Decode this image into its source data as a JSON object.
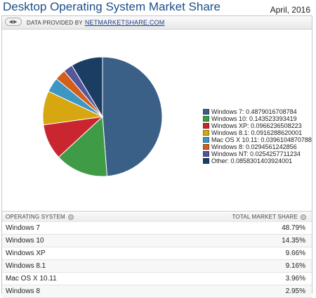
{
  "header": {
    "title": "Desktop Operating System Market Share",
    "date": "April, 2016"
  },
  "source_bar": {
    "nav_icon": "back-forward-icon",
    "provided_by": "DATA PROVIDED BY",
    "source_link": "NETMARKETSHARE.COM"
  },
  "chart_data": {
    "type": "pie",
    "title": "",
    "slices": [
      {
        "label": "Windows 7: 0.4879016708784",
        "value": 0.4879016708784,
        "color": "#3a6087"
      },
      {
        "label": "Windows 10: 0.143523393419",
        "value": 0.143523393419,
        "color": "#3f9b45"
      },
      {
        "label": "Windows XP: 0.0966236508223",
        "value": 0.0966236508223,
        "color": "#c9262f"
      },
      {
        "label": "Windows 8.1: 0.0916288620001",
        "value": 0.0916288620001,
        "color": "#d7a712"
      },
      {
        "label": "Mac OS X 10.11: 0.0396104870788",
        "value": 0.0396104870788,
        "color": "#3d97c4"
      },
      {
        "label": "Windows 8: 0.0294561242856",
        "value": 0.0294561242856,
        "color": "#d45e1b"
      },
      {
        "label": "Windows NT: 0.0254257711234",
        "value": 0.0254257711234,
        "color": "#55579c"
      },
      {
        "label": "Other: 0.0858301403924001",
        "value": 0.0858301403924001,
        "color": "#1c3d63"
      }
    ],
    "legend_position": "right",
    "start": "top",
    "direction": "clockwise"
  },
  "table": {
    "col_os": "OPERATING SYSTEM",
    "col_share": "TOTAL MARKET SHARE",
    "gear_icon": "gear-icon",
    "rows": [
      {
        "os": "Windows 7",
        "share": "48.79%"
      },
      {
        "os": "Windows 10",
        "share": "14.35%"
      },
      {
        "os": "Windows XP",
        "share": "9.66%"
      },
      {
        "os": "Windows 8.1",
        "share": "9.16%"
      },
      {
        "os": "Mac OS X 10.11",
        "share": "3.96%"
      },
      {
        "os": "Windows 8",
        "share": "2.95%"
      }
    ]
  }
}
